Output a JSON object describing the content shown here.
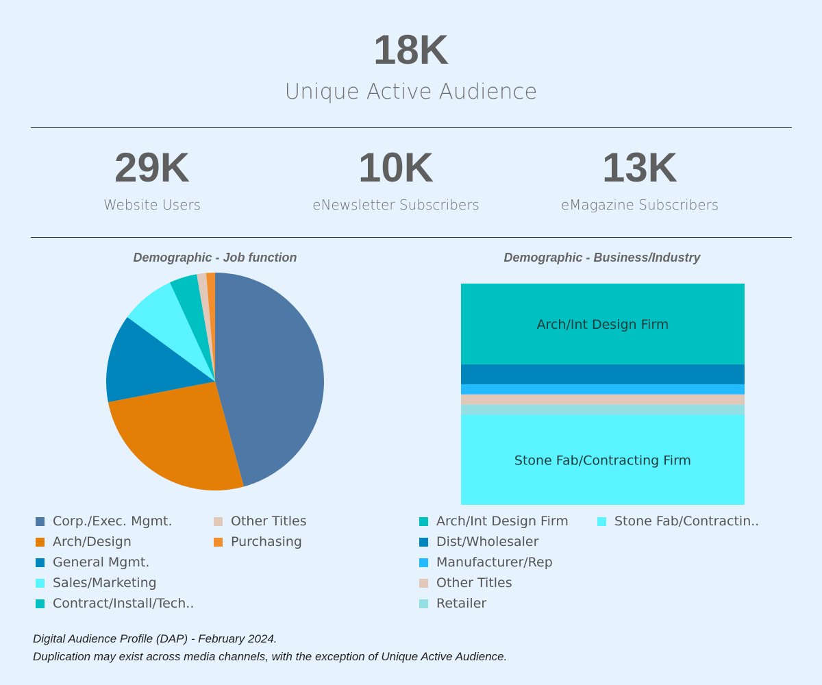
{
  "header": {
    "total_value": "18K",
    "total_label": "Unique Active Audience"
  },
  "kpis": [
    {
      "value": "29K",
      "label": "Website Users"
    },
    {
      "value": "10K",
      "label": "eNewsletter Subscribers"
    },
    {
      "value": "13K",
      "label": "eMagazine Subscribers"
    }
  ],
  "chart_data": [
    {
      "type": "pie",
      "title": "Demographic - Job function",
      "categories": [
        "Corp./Exec. Mgmt.",
        "Arch/Design",
        "General Mgmt.",
        "Sales/Marketing",
        "Contract/Install/Tech..",
        "Other Titles",
        "Purchasing"
      ],
      "values": [
        45.7,
        26.2,
        13.1,
        8.1,
        4.1,
        1.4,
        1.3
      ],
      "colors": [
        "#4e79a7",
        "#e37f07",
        "#0085bd",
        "#59f4ff",
        "#00c0c2",
        "#e1c8b8",
        "#f28e2b"
      ],
      "legend": "bottom"
    },
    {
      "type": "bar",
      "stacked": "100%",
      "title": "Demographic - Business/Industry",
      "categories": [
        "Arch/Int Design Firm",
        "Dist/Wholesaler",
        "Manufacturer/Rep",
        "Other Titles",
        "Retailer",
        "Stone Fab/Contracting Firm"
      ],
      "values": [
        36.5,
        9.0,
        4.6,
        4.6,
        4.6,
        40.7
      ],
      "colors": [
        "#00c0c2",
        "#0085bd",
        "#22bbff",
        "#e1c8b8",
        "#93dfe3",
        "#59f4ff"
      ],
      "bar_labels": [
        "Arch/Int Design Firm",
        "",
        "",
        "",
        "",
        "Stone Fab/Contracting Firm"
      ],
      "legend_labels": [
        "Arch/Int Design Firm",
        "Dist/Wholesaler",
        "Manufacturer/Rep",
        "Other Titles",
        "Retailer",
        "Stone Fab/Contractin.."
      ],
      "legend": "bottom"
    }
  ],
  "footer": {
    "line1": "Digital Audience Profile (DAP) - February 2024.",
    "line2": "Duplication may exist across media channels, with the exception of Unique Active Audience."
  }
}
